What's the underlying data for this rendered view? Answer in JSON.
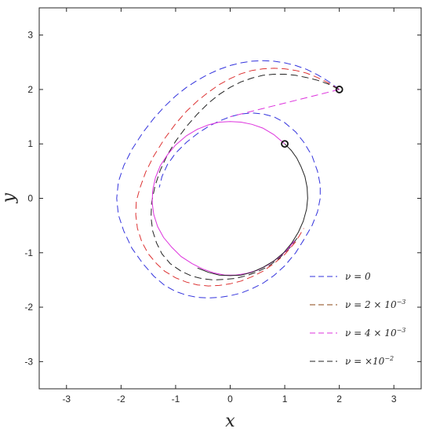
{
  "chart_data": {
    "type": "line",
    "title": "",
    "xlabel": "x",
    "ylabel": "y",
    "xlim": [
      -3.5,
      3.5
    ],
    "ylim": [
      -3.5,
      3.5
    ],
    "x_ticks": [
      -3,
      -2,
      -1,
      0,
      1,
      2,
      3
    ],
    "y_ticks": [
      -3,
      -2,
      -1,
      0,
      1,
      2,
      3
    ],
    "x_tick_labels": [
      "-3",
      "-2",
      "-1",
      "0",
      "1",
      "2",
      "3"
    ],
    "y_tick_labels": [
      "-3",
      "-2",
      "-1",
      "0",
      "1",
      "2",
      "3"
    ],
    "grid": false,
    "legend_position": "bottom-right",
    "legend": [
      {
        "prefix": "ν = ",
        "text": "0",
        "sup": "",
        "color": "#3333dd"
      },
      {
        "prefix": "ν = ",
        "text": "2 × 10",
        "sup": "−3",
        "color": "#8b4513"
      },
      {
        "prefix": "ν = ",
        "text": "4 × 10",
        "sup": "−3",
        "color": "#dd33dd"
      },
      {
        "prefix": "ν = ",
        "text": "×10",
        "sup": "−2",
        "color": "#222222"
      }
    ],
    "markers": [
      {
        "x": 2,
        "y": 2
      },
      {
        "x": 1,
        "y": 1
      }
    ],
    "series": [
      {
        "color": "#3333dd",
        "dash": "dashed",
        "x": [
          2.0,
          1.8,
          1.6,
          1.4,
          1.2,
          1.0,
          0.8,
          0.6,
          0.4,
          0.2,
          0.0,
          -0.2,
          -0.4,
          -0.6,
          -0.8,
          -1.0,
          -1.2,
          -1.4,
          -1.6,
          -1.8,
          -1.95,
          -2.05,
          -2.08,
          -2.05,
          -1.95,
          -1.8,
          -1.6,
          -1.4,
          -1.2,
          -1.0,
          -0.8,
          -0.6,
          -0.4,
          -0.2,
          0.0,
          0.2,
          0.4,
          0.6,
          0.8,
          1.0,
          1.2,
          1.35,
          1.5,
          1.6,
          1.65,
          1.65,
          1.6,
          1.5,
          1.35,
          1.2,
          1.0,
          0.8,
          0.6,
          0.4,
          0.2,
          0.0,
          -0.2,
          -0.4,
          -0.6,
          -0.8,
          -1.0,
          -1.15,
          -1.25,
          -1.3
        ],
        "y": [
          2.0,
          2.15,
          2.27,
          2.37,
          2.44,
          2.49,
          2.52,
          2.53,
          2.52,
          2.49,
          2.44,
          2.37,
          2.28,
          2.17,
          2.04,
          1.88,
          1.69,
          1.47,
          1.21,
          0.9,
          0.6,
          0.3,
          0.0,
          -0.3,
          -0.6,
          -0.92,
          -1.2,
          -1.43,
          -1.6,
          -1.71,
          -1.78,
          -1.82,
          -1.83,
          -1.82,
          -1.79,
          -1.74,
          -1.66,
          -1.56,
          -1.42,
          -1.24,
          -1.0,
          -0.76,
          -0.5,
          -0.25,
          0.0,
          0.25,
          0.5,
          0.78,
          1.03,
          1.22,
          1.39,
          1.5,
          1.55,
          1.57,
          1.55,
          1.5,
          1.42,
          1.32,
          1.19,
          1.03,
          0.83,
          0.62,
          0.4,
          0.2
        ]
      },
      {
        "color": "#dd3333",
        "dash": "dashed",
        "x": [
          2.0,
          1.8,
          1.6,
          1.4,
          1.2,
          1.0,
          0.8,
          0.6,
          0.4,
          0.2,
          0.0,
          -0.2,
          -0.4,
          -0.6,
          -0.8,
          -1.0,
          -1.2,
          -1.4,
          -1.55,
          -1.65,
          -1.72,
          -1.73,
          -1.7,
          -1.62,
          -1.5,
          -1.35,
          -1.2,
          -1.0,
          -0.8,
          -0.6,
          -0.4,
          -0.2,
          0.0,
          0.2,
          0.4,
          0.6,
          0.8,
          1.0,
          1.2,
          1.35
        ],
        "y": [
          2.0,
          2.12,
          2.22,
          2.3,
          2.35,
          2.38,
          2.39,
          2.38,
          2.35,
          2.29,
          2.2,
          2.09,
          1.95,
          1.79,
          1.6,
          1.37,
          1.1,
          0.78,
          0.48,
          0.2,
          -0.05,
          -0.3,
          -0.55,
          -0.8,
          -1.02,
          -1.2,
          -1.34,
          -1.46,
          -1.54,
          -1.59,
          -1.61,
          -1.6,
          -1.57,
          -1.52,
          -1.44,
          -1.34,
          -1.2,
          -1.03,
          -0.8,
          -0.55
        ]
      },
      {
        "color": "#222222",
        "dash": "dashed",
        "x": [
          2.0,
          1.8,
          1.6,
          1.4,
          1.2,
          1.0,
          0.8,
          0.6,
          0.4,
          0.2,
          0.0,
          -0.2,
          -0.4,
          -0.6,
          -0.8,
          -1.0,
          -1.15,
          -1.28,
          -1.38,
          -1.44,
          -1.45,
          -1.42,
          -1.35,
          -1.25,
          -1.1,
          -0.9,
          -0.7,
          -0.5,
          -0.3,
          -0.1,
          0.1,
          0.3,
          0.5,
          0.7,
          0.9,
          1.1,
          1.25
        ],
        "y": [
          2.0,
          2.1,
          2.17,
          2.22,
          2.26,
          2.28,
          2.28,
          2.26,
          2.21,
          2.14,
          2.04,
          1.91,
          1.75,
          1.55,
          1.32,
          1.05,
          0.8,
          0.52,
          0.22,
          -0.08,
          -0.35,
          -0.6,
          -0.82,
          -1.02,
          -1.2,
          -1.34,
          -1.43,
          -1.48,
          -1.5,
          -1.49,
          -1.47,
          -1.42,
          -1.35,
          -1.25,
          -1.1,
          -0.9,
          -0.7
        ]
      },
      {
        "color": "#dd33dd",
        "dash": "dashed",
        "x": [
          2.0,
          1.6,
          1.2,
          0.8,
          0.4,
          0.0
        ],
        "y": [
          2.0,
          1.9,
          1.8,
          1.7,
          1.6,
          1.5
        ]
      },
      {
        "color": "#dd33dd",
        "dash": "solid",
        "x": [
          1.0,
          0.8,
          0.6,
          0.4,
          0.2,
          0.0,
          -0.2,
          -0.4,
          -0.6,
          -0.8,
          -1.0,
          -1.15,
          -1.28,
          -1.37,
          -1.42,
          -1.43,
          -1.4,
          -1.33,
          -1.22,
          -1.07,
          -0.9,
          -0.7,
          -0.5,
          -0.3,
          -0.1,
          0.1,
          0.3,
          0.5,
          0.7,
          0.9,
          1.05,
          1.18
        ],
        "y": [
          1.0,
          1.17,
          1.29,
          1.36,
          1.4,
          1.41,
          1.4,
          1.35,
          1.27,
          1.15,
          0.98,
          0.8,
          0.6,
          0.38,
          0.15,
          -0.08,
          -0.3,
          -0.52,
          -0.72,
          -0.9,
          -1.07,
          -1.2,
          -1.3,
          -1.37,
          -1.41,
          -1.41,
          -1.38,
          -1.32,
          -1.22,
          -1.08,
          -0.94,
          -0.78
        ]
      },
      {
        "color": "#222222",
        "dash": "solid",
        "x": [
          1.0,
          1.12,
          1.22,
          1.3,
          1.37,
          1.41,
          1.42,
          1.4,
          1.34,
          1.25,
          1.13,
          0.98,
          0.8,
          0.6,
          0.4,
          0.2,
          0.0,
          -0.2,
          -0.4,
          -0.6
        ],
        "y": [
          1.0,
          0.88,
          0.74,
          0.58,
          0.4,
          0.2,
          0.0,
          -0.2,
          -0.42,
          -0.62,
          -0.82,
          -1.0,
          -1.15,
          -1.27,
          -1.36,
          -1.41,
          -1.42,
          -1.41,
          -1.36,
          -1.28
        ]
      }
    ]
  }
}
